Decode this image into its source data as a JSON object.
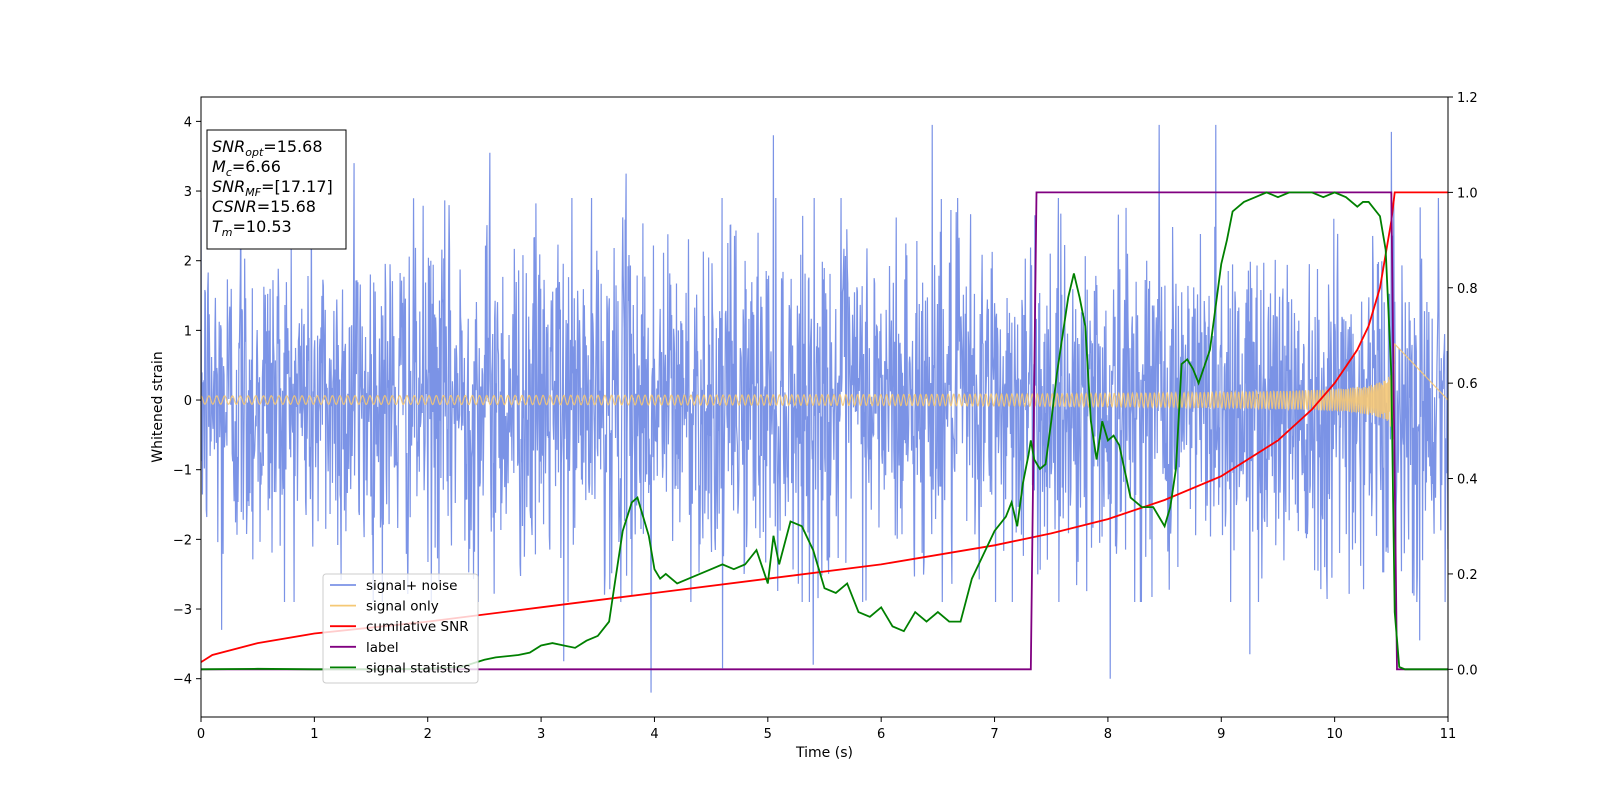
{
  "chart_data": {
    "type": "line",
    "xlabel": "Time (s)",
    "ylabel": "Whitened strain",
    "xlim": [
      0,
      11
    ],
    "ylim_left": [
      -4.55,
      4.35
    ],
    "ylim_right": [
      -0.1,
      1.2
    ],
    "x_ticks": [
      0,
      1,
      2,
      3,
      4,
      5,
      6,
      7,
      8,
      9,
      10,
      11
    ],
    "y_ticks_left": [
      -4,
      -3,
      -2,
      -1,
      0,
      1,
      2,
      3,
      4
    ],
    "y_ticks_right": [
      0.0,
      0.2,
      0.4,
      0.6,
      0.8,
      1.0,
      1.2
    ],
    "grid": false,
    "legend_position": "lower-left",
    "annotation": {
      "lines": [
        {
          "base": "SNR",
          "sub": "opt",
          "value": "=15.68"
        },
        {
          "base": "M",
          "sub": "c",
          "value": "=6.66"
        },
        {
          "base": "SNR",
          "sub": "MF",
          "value": "=[17.17]"
        },
        {
          "base": "CSNR",
          "sub": "",
          "value": "=15.68"
        },
        {
          "base": "T",
          "sub": "m",
          "value": "=10.53"
        }
      ]
    },
    "series": [
      {
        "name": "signal+ noise",
        "axis": "left",
        "color": "#7b93e6",
        "kind": "noise",
        "typical_amplitude": 1.2,
        "peak_values": [
          {
            "x": 0.35,
            "y": 2.95
          },
          {
            "x": 1.35,
            "y": 3.4
          },
          {
            "x": 2.55,
            "y": 3.55
          },
          {
            "x": 3.75,
            "y": 3.25
          },
          {
            "x": 5.05,
            "y": 3.8
          },
          {
            "x": 6.45,
            "y": 3.95
          },
          {
            "x": 8.45,
            "y": 3.95
          },
          {
            "x": 8.95,
            "y": 3.95
          },
          {
            "x": 10.5,
            "y": 3.85
          },
          {
            "x": 3.97,
            "y": -4.2
          },
          {
            "x": 8.02,
            "y": -4.0
          },
          {
            "x": 4.6,
            "y": -3.85
          },
          {
            "x": 10.75,
            "y": -3.45
          },
          {
            "x": 0.18,
            "y": -3.3
          },
          {
            "x": 3.2,
            "y": -3.75
          },
          {
            "x": 5.4,
            "y": -3.8
          },
          {
            "x": 9.25,
            "y": -3.65
          }
        ]
      },
      {
        "name": "signal only",
        "axis": "left",
        "color": "#f5c875",
        "kind": "chirp",
        "end_time": 10.53,
        "amplitude_start": 0.06,
        "amplitude_end": 1.1
      },
      {
        "name": "cumilative SNR",
        "axis": "right",
        "color": "#ff0000",
        "x": [
          0,
          0.1,
          0.5,
          1,
          2,
          3,
          4,
          5,
          6,
          7,
          7.5,
          8,
          8.5,
          9,
          9.5,
          9.8,
          10,
          10.2,
          10.3,
          10.4,
          10.5,
          10.53,
          11
        ],
        "y": [
          0.015,
          0.03,
          0.055,
          0.075,
          0.1,
          0.13,
          0.16,
          0.19,
          0.22,
          0.26,
          0.285,
          0.315,
          0.355,
          0.405,
          0.48,
          0.545,
          0.6,
          0.67,
          0.72,
          0.8,
          0.94,
          1.0,
          1.0
        ]
      },
      {
        "name": "label",
        "axis": "right",
        "color": "#800080",
        "x": [
          0,
          7.32,
          7.37,
          10.5,
          10.55,
          11
        ],
        "y": [
          0,
          0,
          1,
          1,
          0,
          0
        ]
      },
      {
        "name": "signal statistics",
        "axis": "right",
        "color": "#008000",
        "x": [
          0,
          0.5,
          1,
          1.5,
          2,
          2.3,
          2.5,
          2.6,
          2.8,
          2.9,
          3.0,
          3.1,
          3.2,
          3.3,
          3.4,
          3.5,
          3.6,
          3.65,
          3.72,
          3.8,
          3.85,
          3.9,
          3.95,
          4.0,
          4.05,
          4.1,
          4.2,
          4.3,
          4.4,
          4.5,
          4.6,
          4.7,
          4.8,
          4.9,
          5.0,
          5.05,
          5.1,
          5.2,
          5.3,
          5.4,
          5.5,
          5.6,
          5.7,
          5.8,
          5.9,
          6.0,
          6.1,
          6.2,
          6.3,
          6.4,
          6.5,
          6.6,
          6.7,
          6.8,
          6.9,
          7.0,
          7.1,
          7.15,
          7.2,
          7.25,
          7.3,
          7.32,
          7.35,
          7.4,
          7.45,
          7.5,
          7.55,
          7.6,
          7.65,
          7.7,
          7.75,
          7.8,
          7.85,
          7.9,
          7.95,
          8.0,
          8.05,
          8.1,
          8.2,
          8.3,
          8.4,
          8.5,
          8.55,
          8.6,
          8.65,
          8.7,
          8.75,
          8.8,
          8.9,
          9.0,
          9.05,
          9.1,
          9.15,
          9.2,
          9.3,
          9.4,
          9.5,
          9.6,
          9.7,
          9.8,
          9.9,
          10.0,
          10.1,
          10.2,
          10.25,
          10.3,
          10.4,
          10.45,
          10.5,
          10.53,
          10.57,
          10.62,
          10.7,
          10.8,
          11
        ],
        "y": [
          0.0,
          0.001,
          0.0,
          0.0,
          0.001,
          0.005,
          0.02,
          0.025,
          0.03,
          0.035,
          0.05,
          0.055,
          0.05,
          0.045,
          0.06,
          0.07,
          0.1,
          0.18,
          0.29,
          0.35,
          0.36,
          0.32,
          0.28,
          0.21,
          0.19,
          0.2,
          0.18,
          0.19,
          0.2,
          0.21,
          0.22,
          0.21,
          0.22,
          0.25,
          0.18,
          0.28,
          0.22,
          0.31,
          0.3,
          0.25,
          0.17,
          0.16,
          0.18,
          0.12,
          0.11,
          0.13,
          0.09,
          0.08,
          0.12,
          0.1,
          0.12,
          0.1,
          0.1,
          0.19,
          0.24,
          0.29,
          0.32,
          0.35,
          0.3,
          0.39,
          0.45,
          0.48,
          0.44,
          0.42,
          0.43,
          0.52,
          0.62,
          0.7,
          0.78,
          0.83,
          0.78,
          0.72,
          0.52,
          0.44,
          0.52,
          0.48,
          0.49,
          0.47,
          0.36,
          0.34,
          0.34,
          0.3,
          0.34,
          0.42,
          0.64,
          0.65,
          0.63,
          0.6,
          0.67,
          0.85,
          0.9,
          0.96,
          0.97,
          0.98,
          0.99,
          1.0,
          0.99,
          1.0,
          1.0,
          1.0,
          0.99,
          1.0,
          0.99,
          0.97,
          0.98,
          0.98,
          0.95,
          0.88,
          0.62,
          0.12,
          0.005,
          0.0,
          0.0,
          0.0,
          0.0
        ]
      }
    ]
  }
}
